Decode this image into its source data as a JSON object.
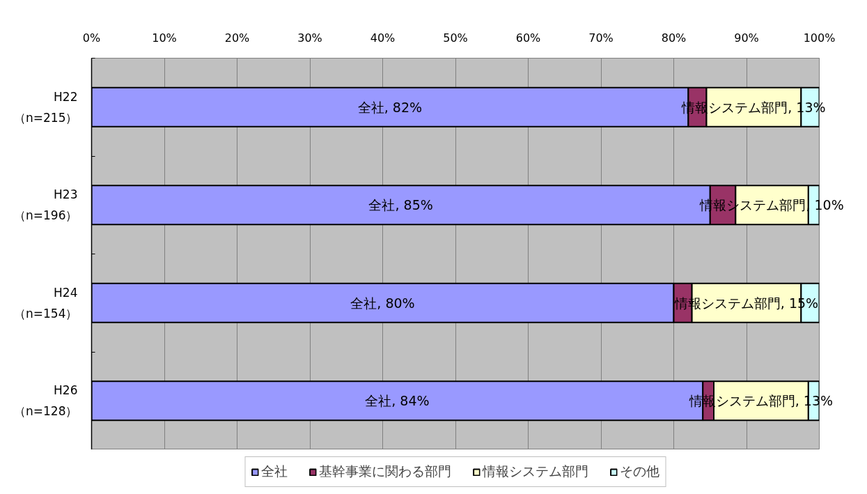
{
  "chart_data": {
    "type": "bar",
    "orientation": "horizontal",
    "stacked": true,
    "categories": [
      "H22\n（n=215）",
      "H23\n（n=196）",
      "H24\n（n=154）",
      "H26\n（n=128）"
    ],
    "series": [
      {
        "name": "全社",
        "color": "#9999ff",
        "values": [
          82,
          85,
          80,
          84
        ],
        "value_labels": [
          "全社, 82%",
          "全社, 85%",
          "全社, 80%",
          "全社, 84%"
        ]
      },
      {
        "name": "基幹事業に関わる部門",
        "color": "#993366",
        "values": [
          2.5,
          3.5,
          2.5,
          1.5
        ]
      },
      {
        "name": "情報システム部門",
        "color": "#ffffcc",
        "values": [
          13,
          10,
          15,
          13
        ],
        "value_labels": [
          "情報システム部門, 13%",
          "情報システム部門, 10%",
          "情報システム部門, 15%",
          "情報システム部門, 13%"
        ]
      },
      {
        "name": "その他",
        "color": "#ccffff",
        "values": [
          2.5,
          1.5,
          2.5,
          1.5
        ]
      }
    ],
    "xlim": [
      0,
      100
    ],
    "xticks": [
      {
        "value": 0,
        "label": "0%"
      },
      {
        "value": 10,
        "label": "10%"
      },
      {
        "value": 20,
        "label": "20%"
      },
      {
        "value": 30,
        "label": "30%"
      },
      {
        "value": 40,
        "label": "40%"
      },
      {
        "value": 50,
        "label": "50%"
      },
      {
        "value": 60,
        "label": "60%"
      },
      {
        "value": 70,
        "label": "70%"
      },
      {
        "value": 80,
        "label": "80%"
      },
      {
        "value": 90,
        "label": "90%"
      },
      {
        "value": 100,
        "label": "100%"
      }
    ],
    "grid": "x",
    "legend": "bottom"
  }
}
